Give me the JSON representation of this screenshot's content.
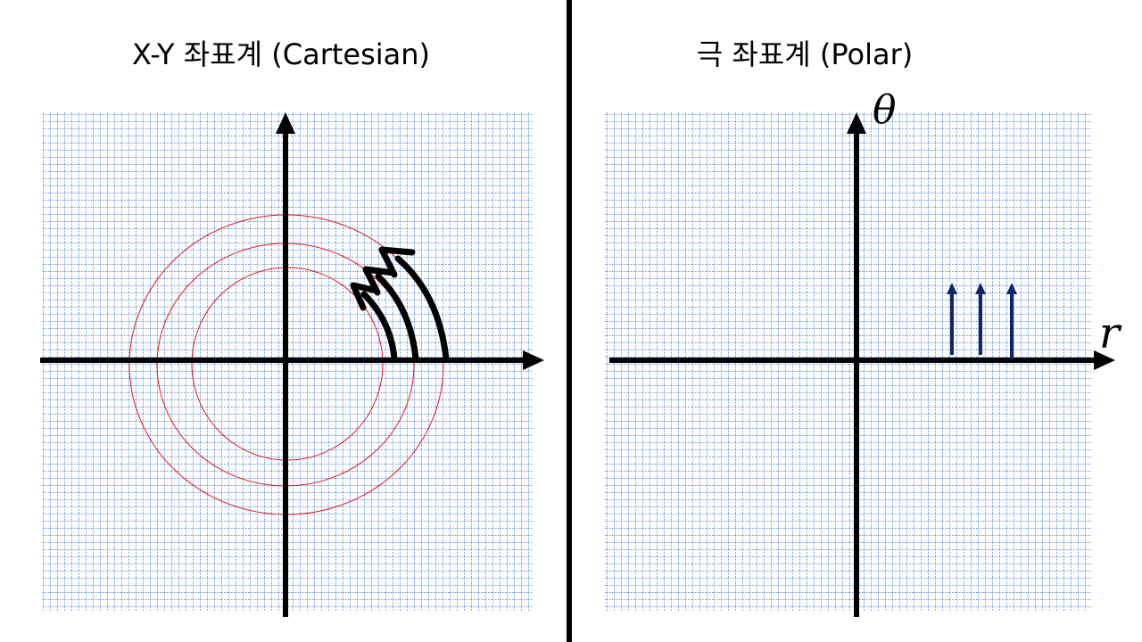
{
  "left_panel": {
    "title": "X-Y 좌표계 (Cartesian)"
  },
  "right_panel": {
    "title": "극 좌표계 (Polar)",
    "theta_label": "θ",
    "r_label": "r"
  },
  "colors": {
    "grid": "#3a78d8",
    "circles": "#e8121e",
    "axes": "#000000",
    "r_arrows": "#0c2666",
    "divider": "#000000"
  }
}
